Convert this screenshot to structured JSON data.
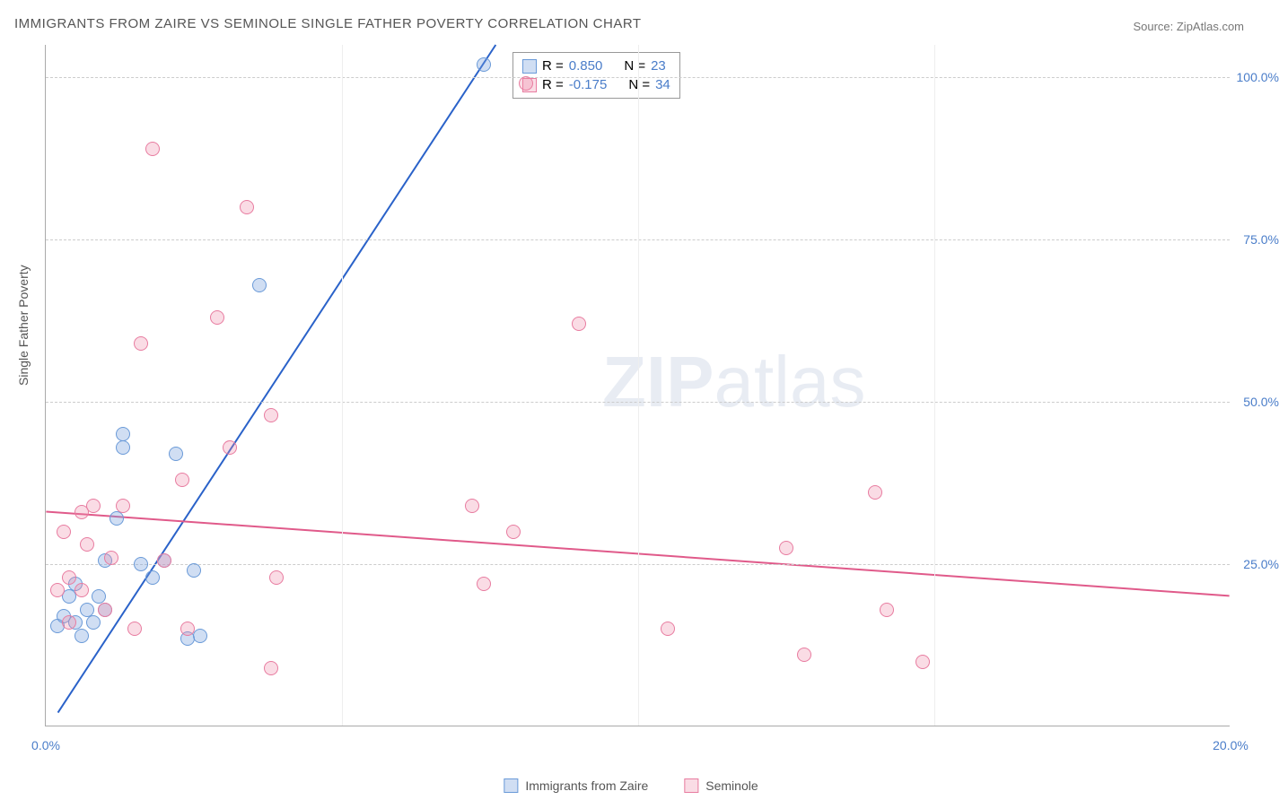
{
  "title": "IMMIGRANTS FROM ZAIRE VS SEMINOLE SINGLE FATHER POVERTY CORRELATION CHART",
  "source": "Source: ZipAtlas.com",
  "y_axis_label": "Single Father Poverty",
  "watermark_a": "ZIP",
  "watermark_b": "atlas",
  "chart": {
    "type": "scatter",
    "xlim": [
      0,
      20
    ],
    "ylim": [
      0,
      105
    ],
    "xticks": [
      0.0,
      20.0
    ],
    "xtick_labels": [
      "0.0%",
      "20.0%"
    ],
    "yticks": [
      25.0,
      50.0,
      75.0,
      100.0
    ],
    "ytick_labels": [
      "25.0%",
      "50.0%",
      "75.0%",
      "100.0%"
    ],
    "grid_color": "#cccccc",
    "background_color": "#ffffff",
    "marker_radius": 8,
    "series": [
      {
        "name": "Immigrants from Zaire",
        "color_fill": "rgba(120,160,220,0.35)",
        "color_stroke": "#6a9ad8",
        "trend_color": "#2a62c9",
        "trend": {
          "x1": 0.2,
          "y1": 2,
          "x2": 7.6,
          "y2": 105
        },
        "R": "0.850",
        "N": "23",
        "points": [
          [
            0.2,
            15.5
          ],
          [
            0.3,
            17
          ],
          [
            0.4,
            20
          ],
          [
            0.5,
            16
          ],
          [
            0.5,
            22
          ],
          [
            0.6,
            14
          ],
          [
            0.7,
            18
          ],
          [
            0.8,
            16
          ],
          [
            0.9,
            20
          ],
          [
            1.0,
            25.5
          ],
          [
            1.0,
            18
          ],
          [
            1.2,
            32
          ],
          [
            1.3,
            43
          ],
          [
            1.3,
            45
          ],
          [
            1.6,
            25
          ],
          [
            1.8,
            23
          ],
          [
            2.0,
            25.5
          ],
          [
            2.2,
            42
          ],
          [
            2.4,
            13.5
          ],
          [
            2.5,
            24
          ],
          [
            2.6,
            14
          ],
          [
            3.6,
            68
          ],
          [
            7.4,
            102
          ]
        ]
      },
      {
        "name": "Seminole",
        "color_fill": "rgba(240,140,170,0.30)",
        "color_stroke": "#e87ca0",
        "trend_color": "#e05a8a",
        "trend": {
          "x1": 0,
          "y1": 33,
          "x2": 20,
          "y2": 20
        },
        "R": "-0.175",
        "N": "34",
        "points": [
          [
            0.2,
            21
          ],
          [
            0.3,
            30
          ],
          [
            0.4,
            16
          ],
          [
            0.4,
            23
          ],
          [
            0.6,
            21
          ],
          [
            0.6,
            33
          ],
          [
            0.7,
            28
          ],
          [
            0.8,
            34
          ],
          [
            1.0,
            18
          ],
          [
            1.1,
            26
          ],
          [
            1.3,
            34
          ],
          [
            1.5,
            15
          ],
          [
            1.6,
            59
          ],
          [
            1.8,
            89
          ],
          [
            2.0,
            25.5
          ],
          [
            2.3,
            38
          ],
          [
            2.4,
            15
          ],
          [
            2.9,
            63
          ],
          [
            3.1,
            43
          ],
          [
            3.4,
            80
          ],
          [
            3.8,
            9
          ],
          [
            3.8,
            48
          ],
          [
            3.9,
            23
          ],
          [
            7.2,
            34
          ],
          [
            7.4,
            22
          ],
          [
            7.9,
            30
          ],
          [
            8.1,
            99
          ],
          [
            9.0,
            62
          ],
          [
            10.5,
            15
          ],
          [
            12.5,
            27.5
          ],
          [
            12.8,
            11
          ],
          [
            14.0,
            36
          ],
          [
            14.2,
            18
          ],
          [
            14.8,
            10
          ]
        ]
      }
    ]
  },
  "legend": {
    "r_label": "R =",
    "n_label": "N ="
  }
}
